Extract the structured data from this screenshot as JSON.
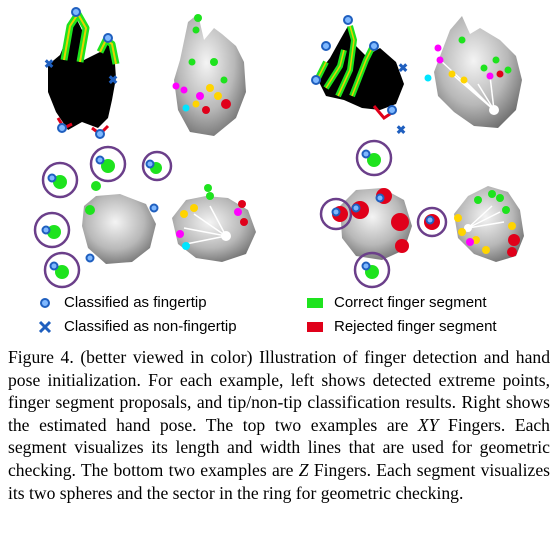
{
  "colors": {
    "fingertip": "#1f5fbf",
    "non_fingertip": "#1f5fbf",
    "correct_segment": "#1ee31e",
    "rejected_segment": "#e0001a",
    "ring": "#5a3a7a"
  },
  "legend": {
    "fingertip": "Classified as fingertip",
    "non_fingertip": "Classified as non-fingertip",
    "correct": "Correct finger segment",
    "rejected": "Rejected finger segment"
  },
  "caption": {
    "label": "Figure 4.",
    "part1": "(better viewed in color) Illustration of finger detection and hand pose initialization.  For each example, left shows detected extreme points, finger segment proposals, and tip/non-tip classification results. Right shows the estimated hand pose. The top two examples are",
    "xy": "XY",
    "part2": "Fingers.  Each segment visualizes its length and width lines that are used for geometric checking. The bottom two examples are",
    "z": "Z",
    "part3": "Fingers. Each segment visualizes its two spheres and the sector in the ring for geometric checking."
  }
}
